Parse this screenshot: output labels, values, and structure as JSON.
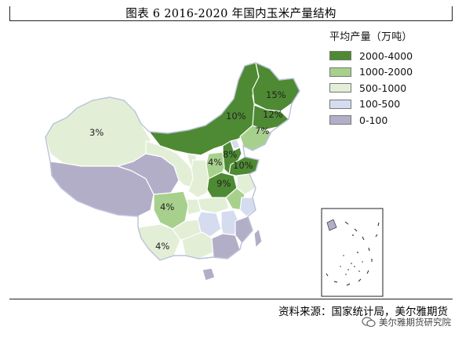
{
  "title": "图表 6    2016-2020 年国内玉米产量结构",
  "legend": {
    "title": "平均产量（万吨）",
    "items": [
      {
        "label": "2000-4000",
        "color": "#4e8a33"
      },
      {
        "label": "1000-2000",
        "color": "#a8d08d"
      },
      {
        "label": "500-1000",
        "color": "#e2efd6"
      },
      {
        "label": "100-500",
        "color": "#d6dcef"
      },
      {
        "label": "0-100",
        "color": "#b3aec8"
      }
    ]
  },
  "region_labels": {
    "xinjiang": "3%",
    "heilongjiang": "15%",
    "inner_mongolia": "10%",
    "jilin": "12%",
    "liaoning": "7%",
    "hebei": "8%",
    "shanxi": "4%",
    "shandong": "10%",
    "henan": "9%",
    "sichuan": "4%",
    "yunnan": "4%"
  },
  "source": "资料来源：国家统计局，美尔雅期货",
  "watermark": "美尔雅期货研究院"
}
